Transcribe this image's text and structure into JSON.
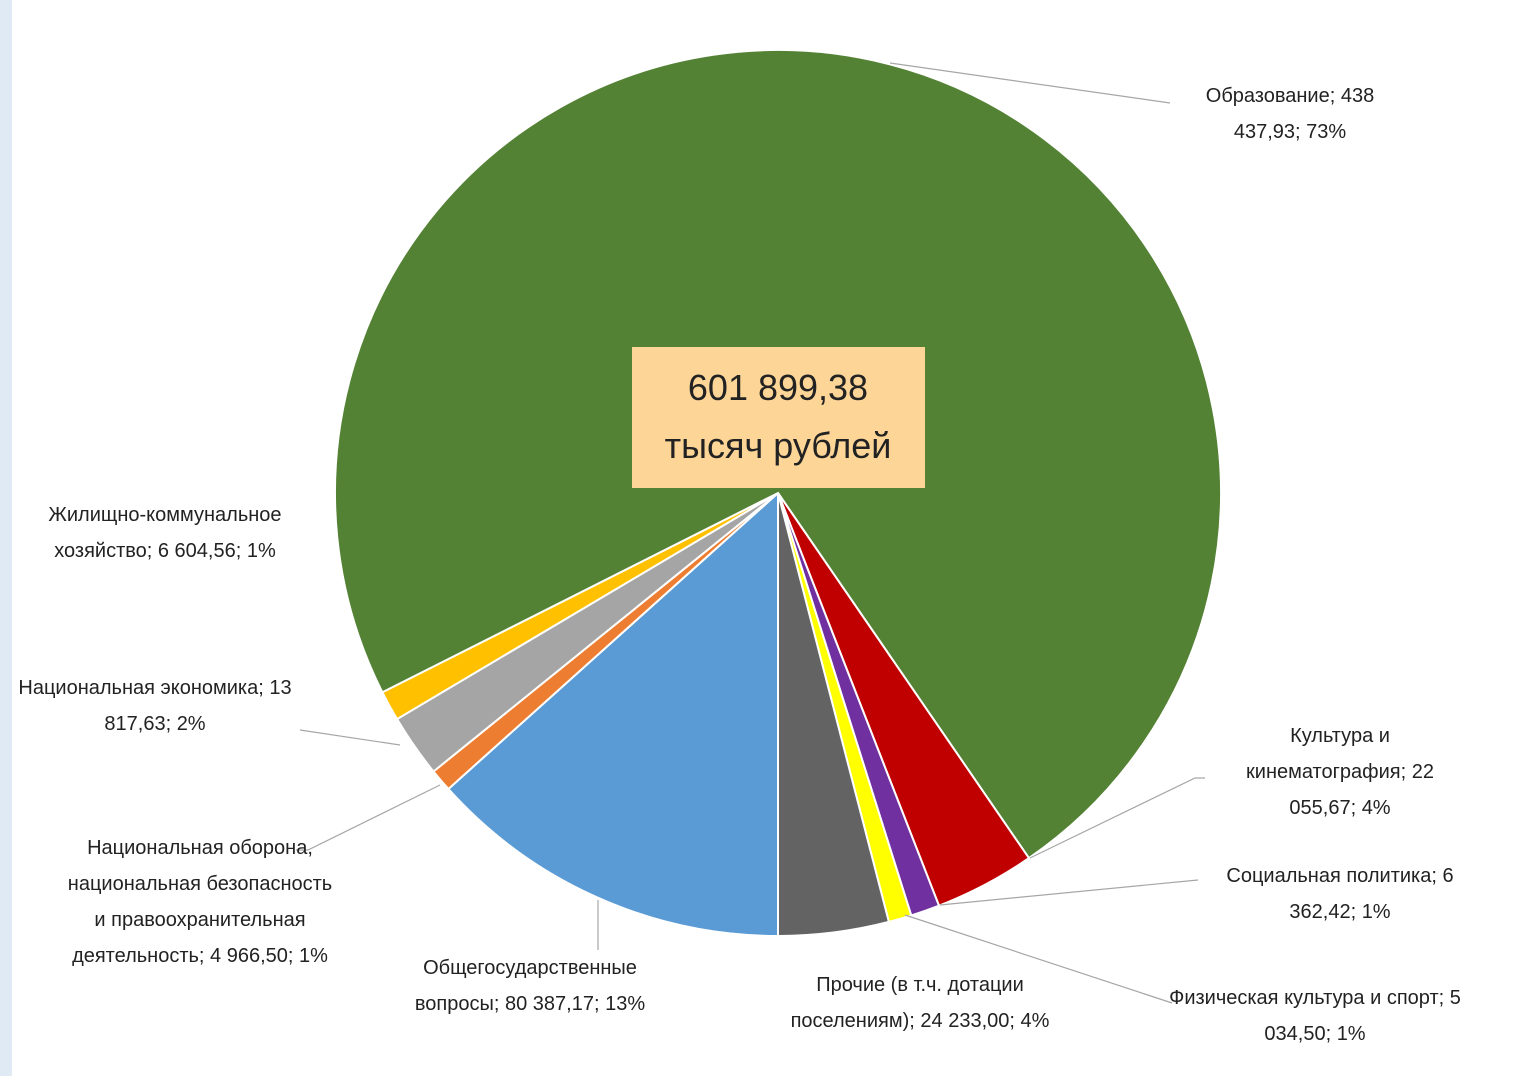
{
  "chart_data": {
    "type": "pie",
    "annotation": [
      "601 899,38",
      "тысяч рублей"
    ],
    "start_angle": 180,
    "label_separator": "; ",
    "categories": [
      "Общегосударственные вопросы",
      "Национальная оборона, национальная безопасность и правоохранительная деятельность",
      "Национальная экономика",
      "Жилищно-коммунальное хозяйство",
      "Образование",
      "Культура и кинематография",
      "Социальная политика",
      "Физическая культура и спорт",
      "Прочие (в т.ч. дотации поселениям)"
    ],
    "values": [
      80387.17,
      4966.5,
      13817.63,
      6604.56,
      438437.93,
      22055.67,
      6362.42,
      5034.5,
      24233.0
    ],
    "value_labels": [
      "80 387,17",
      "4 966,50",
      "13 817,63",
      "6 604,56",
      "438 437,93",
      "22 055,67",
      "6 362,42",
      "5 034,50",
      "24 233,00"
    ],
    "percent_labels": [
      "13%",
      "1%",
      "2%",
      "1%",
      "73%",
      "4%",
      "1%",
      "1%",
      "4%"
    ],
    "colors": [
      "#5b9bd5",
      "#ed7d31",
      "#a5a5a5",
      "#ffc000",
      "#548235",
      "#c00000",
      "#7030a0",
      "#ffff00",
      "#636363"
    ]
  }
}
